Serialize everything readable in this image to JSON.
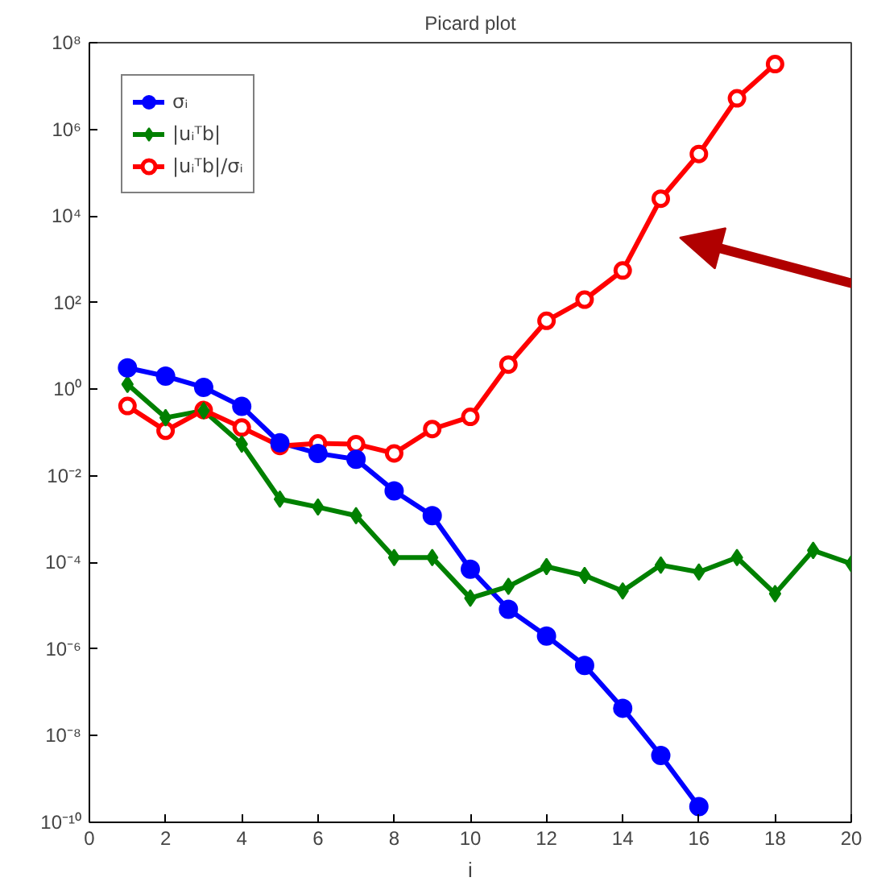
{
  "chart_data": {
    "type": "line",
    "title": "Picard plot",
    "xlabel": "i",
    "log": "y",
    "grid": false,
    "legend": "top left",
    "x": [
      1,
      2,
      3,
      4,
      5,
      6,
      7,
      8,
      9,
      10,
      11,
      12,
      13,
      14,
      15,
      16,
      17,
      18,
      19,
      20
    ],
    "xlim": [
      0,
      20
    ],
    "xticks": [
      0,
      2,
      4,
      6,
      8,
      10,
      12,
      14,
      16,
      18,
      20
    ],
    "ylim": [
      1e-10,
      100000000.0
    ],
    "yticks": [
      {
        "value": 1e-10,
        "label": "10⁻¹⁰"
      },
      {
        "value": 1e-08,
        "label": "10⁻⁸"
      },
      {
        "value": 1e-06,
        "label": "10⁻⁶"
      },
      {
        "value": 0.0001,
        "label": "10⁻⁴"
      },
      {
        "value": 0.01,
        "label": "10⁻²"
      },
      {
        "value": 1,
        "label": "10⁰"
      },
      {
        "value": 100,
        "label": "10²"
      },
      {
        "value": 10000,
        "label": "10⁴"
      },
      {
        "value": 1000000,
        "label": "10⁶"
      },
      {
        "value": 100000000,
        "label": "10⁸"
      }
    ],
    "series": [
      {
        "name": "σᵢ",
        "color": "#0000ff",
        "marker": "circle",
        "values": [
          3.1,
          2.0,
          1.1,
          0.4,
          0.058,
          0.033,
          0.024,
          0.0045,
          0.0012,
          7e-05,
          8.3e-06,
          2e-06,
          4.2e-07,
          4.3e-08,
          3.5e-09,
          2.3e-10,
          null,
          null,
          null,
          null
        ]
      },
      {
        "name": "|uᵢᵀb|",
        "color": "#008000",
        "marker": "diamond",
        "values": [
          1.3,
          0.22,
          0.32,
          0.054,
          0.0029,
          0.0019,
          0.0012,
          0.00013,
          0.00013,
          1.5e-05,
          2.8e-05,
          8e-05,
          5e-05,
          2.2e-05,
          8.7e-05,
          6e-05,
          0.00013,
          1.9e-05,
          0.00019,
          9.3e-05
        ]
      },
      {
        "name": "|uᵢᵀb|/σᵢ",
        "color": "#ff0000",
        "marker": "circle_open",
        "values": [
          0.41,
          0.11,
          0.33,
          0.13,
          0.049,
          0.056,
          0.054,
          0.033,
          0.12,
          0.23,
          3.7,
          38,
          117,
          550,
          25000,
          270000,
          5200000,
          32000000,
          null,
          null
        ]
      }
    ]
  }
}
